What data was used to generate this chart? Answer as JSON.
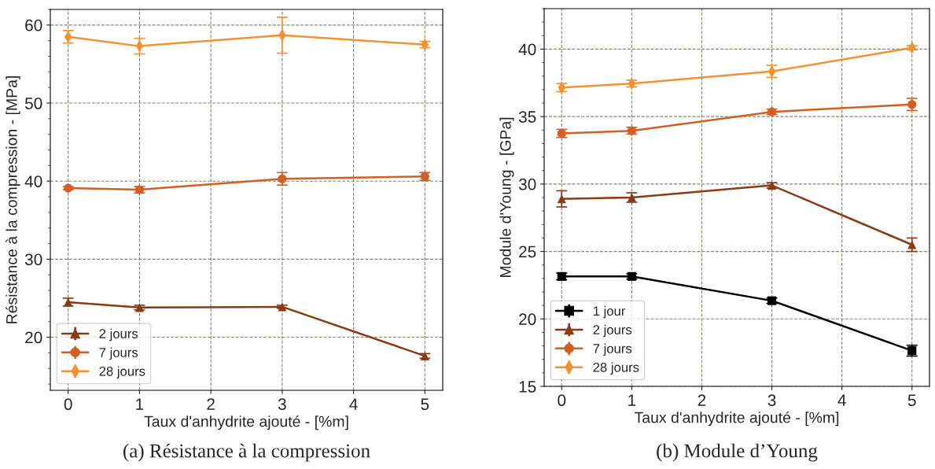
{
  "chart_data": [
    {
      "type": "line",
      "xlabel": "Taux d'anhydrite ajouté - [%m]",
      "ylabel": "Résistance à la compression - [MPa]",
      "annotations": [
        "(a) Résistance à la compression"
      ],
      "x": [
        0,
        1,
        3,
        5
      ],
      "xlim": [
        -0.25,
        5.25
      ],
      "xticks": [
        0,
        1,
        2,
        3,
        4,
        5
      ],
      "ylim": [
        13.2,
        62
      ],
      "yticks": [
        20,
        30,
        40,
        50,
        60
      ],
      "grid": true,
      "legend": "bottom left",
      "series": [
        {
          "name": "2 jours",
          "color": "#8b3a13",
          "marker": "triangle",
          "values": [
            24.5,
            23.8,
            23.9,
            17.6
          ],
          "errors": [
            0.5,
            0.3,
            0.2,
            0.3
          ]
        },
        {
          "name": "7 jours",
          "color": "#d35f24",
          "marker": "circle",
          "values": [
            39.1,
            38.9,
            40.3,
            40.6
          ],
          "errors": [
            0.2,
            0.4,
            0.8,
            0.5
          ]
        },
        {
          "name": "28 jours",
          "color": "#f39233",
          "marker": "diamond",
          "values": [
            58.5,
            57.3,
            58.7,
            57.5
          ],
          "errors": [
            0.8,
            1.0,
            2.3,
            0.4
          ]
        }
      ]
    },
    {
      "type": "line",
      "xlabel": "Taux d'anhydrite ajouté - [%m]",
      "ylabel": "Module d'Young - [GPa]",
      "annotations": [
        "(b) Module d’Young"
      ],
      "x": [
        0,
        1,
        3,
        5
      ],
      "xlim": [
        -0.25,
        5.25
      ],
      "xticks": [
        0,
        1,
        2,
        3,
        4,
        5
      ],
      "ylim": [
        15,
        43
      ],
      "yticks": [
        15,
        20,
        25,
        30,
        35,
        40
      ],
      "grid": true,
      "legend": "bottom left",
      "series": [
        {
          "name": "1 jour",
          "color": "#000000",
          "marker": "square",
          "values": [
            23.15,
            23.15,
            21.35,
            17.65
          ],
          "errors": [
            0.25,
            0.2,
            0.2,
            0.4
          ]
        },
        {
          "name": "2 jours",
          "color": "#8b3a13",
          "marker": "triangle",
          "values": [
            28.9,
            29.0,
            29.9,
            25.5
          ],
          "errors": [
            0.6,
            0.35,
            0.2,
            0.5
          ]
        },
        {
          "name": "7 jours",
          "color": "#d35f24",
          "marker": "circle",
          "values": [
            33.75,
            33.95,
            35.35,
            35.9
          ],
          "errors": [
            0.3,
            0.25,
            0.2,
            0.45
          ]
        },
        {
          "name": "28 jours",
          "color": "#f39233",
          "marker": "diamond",
          "values": [
            37.15,
            37.45,
            38.35,
            40.1
          ],
          "errors": [
            0.3,
            0.25,
            0.45,
            0.15
          ]
        }
      ]
    }
  ]
}
